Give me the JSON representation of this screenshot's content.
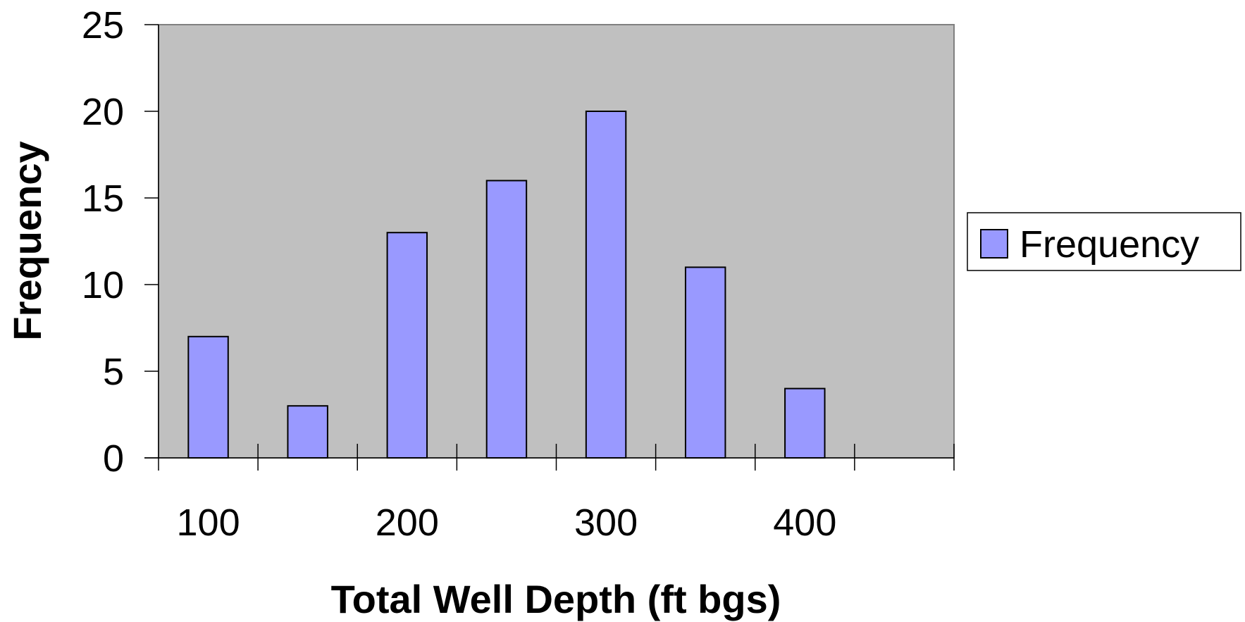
{
  "chart_data": {
    "type": "bar",
    "categories": [
      "",
      "",
      "",
      "",
      "",
      "",
      "",
      ""
    ],
    "x_tick_labels": [
      "100",
      "200",
      "300",
      "400"
    ],
    "series": [
      {
        "name": "Frequency",
        "values": [
          7,
          3,
          13,
          16,
          20,
          11,
          4,
          0
        ]
      }
    ],
    "title": "",
    "xlabel": "Total Well Depth (ft bgs)",
    "ylabel": "Frequency",
    "ylim": [
      0,
      25
    ],
    "yticks": [
      0,
      5,
      10,
      15,
      20,
      25
    ],
    "grid": false,
    "legend": {
      "position": "right",
      "entries": [
        "Frequency"
      ]
    },
    "colors": {
      "bar_fill": "#9999ff",
      "bar_stroke": "#000000",
      "plot_background": "#c0c0c0",
      "axis": "#000000"
    }
  }
}
